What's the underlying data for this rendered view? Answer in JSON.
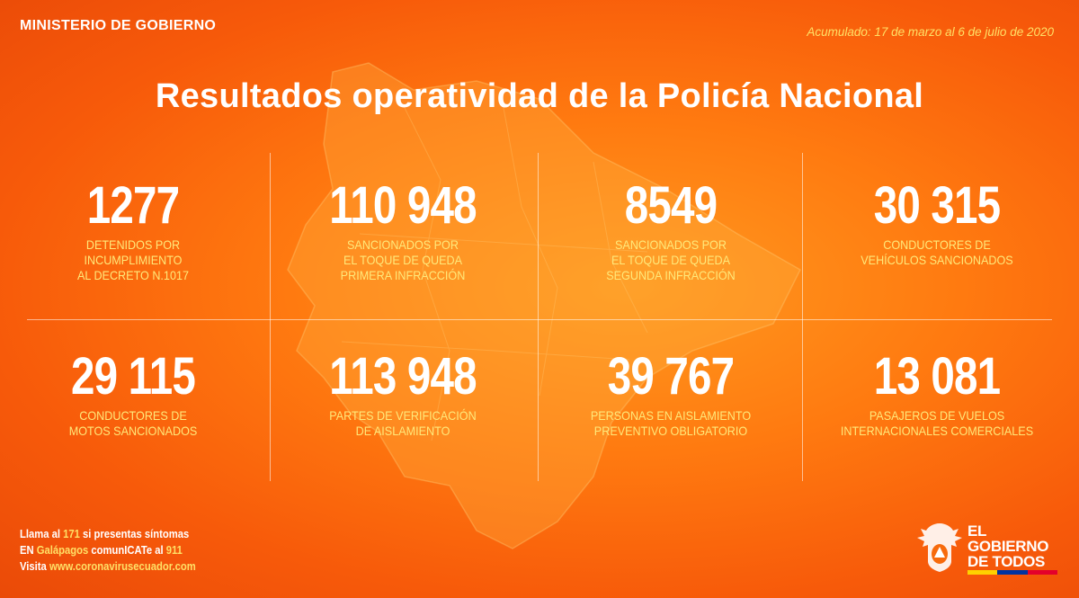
{
  "header": {
    "ministry": "MINISTERIO DE GOBIERNO",
    "accumulated": "Acumulado: 17 de marzo al 6 de julio de 2020",
    "title": "Resultados operatividad de la Policía Nacional"
  },
  "stats": [
    {
      "value": "1277",
      "label": [
        "DETENIDOS POR",
        "INCUMPLIMIENTO",
        "AL DECRETO N.1017"
      ]
    },
    {
      "value": "110 948",
      "label": [
        "SANCIONADOS POR",
        "EL TOQUE DE QUEDA",
        "PRIMERA INFRACCIÓN"
      ]
    },
    {
      "value": "8549",
      "label": [
        "SANCIONADOS POR",
        "EL TOQUE DE QUEDA",
        "SEGUNDA INFRACCIÓN"
      ]
    },
    {
      "value": "30 315",
      "label": [
        "CONDUCTORES DE",
        "VEHÍCULOS SANCIONADOS"
      ]
    },
    {
      "value": "29 115",
      "label": [
        "CONDUCTORES DE",
        "MOTOS SANCIONADOS"
      ]
    },
    {
      "value": "113 948",
      "label": [
        "PARTES DE VERIFICACIÓN",
        "DE AISLAMIENTO"
      ]
    },
    {
      "value": "39 767",
      "label": [
        "PERSONAS EN AISLAMIENTO",
        "PREVENTIVO OBLIGATORIO"
      ]
    },
    {
      "value": "13 081",
      "label": [
        "PASAJEROS DE VUELOS",
        "INTERNACIONALES COMERCIALES"
      ]
    }
  ],
  "footer": {
    "line1_a": "Llama al ",
    "line1_b": "171",
    "line1_c": " si presentas síntomas",
    "line2_a": "EN ",
    "line2_b": "Galápagos",
    "line2_c": " comunICATe al ",
    "line2_d": "911",
    "line3_a": "Visita ",
    "line3_b": "www.coronavirusecuador.com"
  },
  "logo": {
    "line1": "EL",
    "line2": "GOBIERNO",
    "line3": "DE TODOS",
    "icon": "coat-of-arms-icon"
  },
  "colors": {
    "background": "#f76a0c",
    "label": "#ffe97a",
    "flag_yellow": "#ffd100",
    "flag_blue": "#0033a0",
    "flag_red": "#e4002b"
  }
}
